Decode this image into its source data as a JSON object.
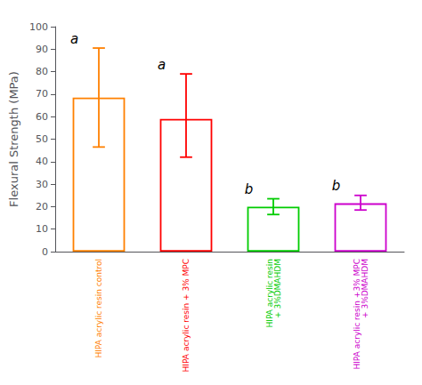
{
  "chart_data": {
    "type": "bar",
    "categories": [
      "HIPA acrylic resin control",
      "HIPA acrylic resin + 3% MPC",
      "HIPA acrylic resin\n+ 3%DMAHDM",
      "HIPA acrylic resin +3% MPC\n+ 3%DMAHDM"
    ],
    "values": [
      68.5,
      59.0,
      20.0,
      21.5
    ],
    "errors_upper": [
      22.0,
      20.0,
      3.5,
      3.5
    ],
    "errors_lower": [
      22.0,
      17.0,
      3.5,
      3.0
    ],
    "colors": [
      "#FF8000",
      "#FF0000",
      "#00CC00",
      "#CC00CC"
    ],
    "annotations": [
      "a",
      "a",
      "b",
      "b"
    ],
    "ylabel": "Flexural Strength (MPa)",
    "ylim": [
      0,
      100
    ],
    "yticks": [
      0,
      10,
      20,
      30,
      40,
      50,
      60,
      70,
      80,
      90,
      100
    ],
    "grid": false
  }
}
